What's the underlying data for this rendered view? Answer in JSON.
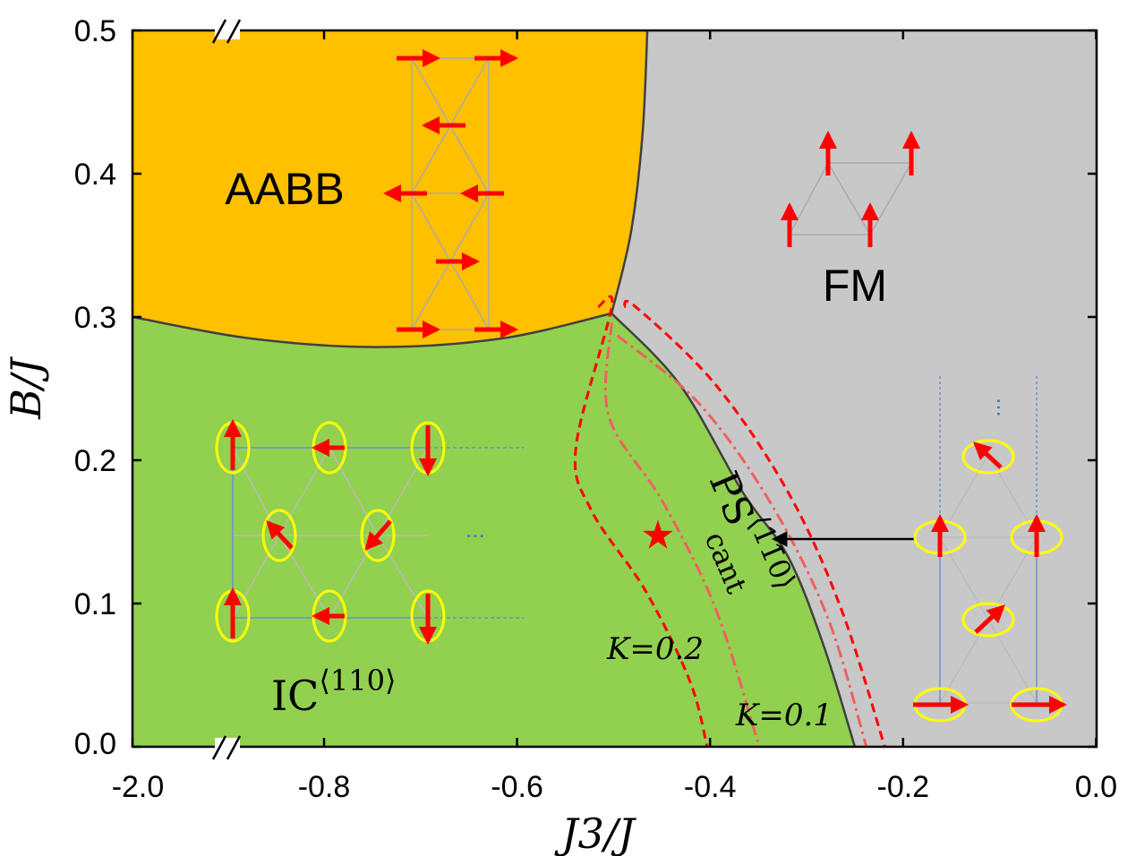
{
  "chart_data": {
    "type": "phase-diagram",
    "xlabel": "J3/J",
    "ylabel": "B/J",
    "xlim": [
      -2.0,
      0.0
    ],
    "ylim": [
      0.0,
      0.5
    ],
    "x_axis_break": "between -2.0 and -0.8",
    "xticks": [
      "-2.0",
      "-0.8",
      "-0.6",
      "-0.4",
      "-0.2",
      "0.0"
    ],
    "xtick_values": [
      -2.0,
      -0.8,
      -0.6,
      -0.4,
      -0.2,
      0.0
    ],
    "yticks": [
      "0.0",
      "0.1",
      "0.2",
      "0.3",
      "0.4",
      "0.5"
    ],
    "ytick_values": [
      0.0,
      0.1,
      0.2,
      0.3,
      0.4,
      0.5
    ],
    "phases": [
      {
        "name": "AABB",
        "color": "#FFC000"
      },
      {
        "name": "FM",
        "color": "#C8C8C8"
      },
      {
        "name": "IC",
        "superscript": "⟨110⟩",
        "color": "#92D050"
      },
      {
        "name": "PS",
        "subscript": "cant",
        "superscript": "⟨11̄0⟩"
      }
    ],
    "boundaries": {
      "aabb_ic": [
        [
          -2.0,
          0.3
        ],
        [
          -1.26,
          0.285
        ],
        [
          -0.746,
          0.279
        ],
        [
          -0.616,
          0.285
        ],
        [
          -0.502,
          0.3025
        ]
      ],
      "aabb_fm": [
        [
          -0.465,
          0.5
        ],
        [
          -0.47,
          0.4275
        ],
        [
          -0.482,
          0.359
        ],
        [
          -0.502,
          0.3025
        ]
      ],
      "ic_fm": [
        [
          -0.502,
          0.3025
        ],
        [
          -0.431,
          0.2525
        ],
        [
          -0.366,
          0.1775
        ],
        [
          -0.319,
          0.1325
        ],
        [
          -0.282,
          0.07
        ],
        [
          -0.25,
          0.0
        ]
      ]
    },
    "series": [
      {
        "name": "K=0.2 (left)",
        "style": "dashed",
        "color": "#FF0000",
        "points": [
          [
            -0.516,
            0.307
          ],
          [
            -0.502,
            0.307
          ],
          [
            -0.539,
            0.209
          ],
          [
            -0.523,
            0.165
          ],
          [
            -0.467,
            0.109
          ],
          [
            -0.421,
            0.046
          ],
          [
            -0.403,
            0.0
          ]
        ]
      },
      {
        "name": "K=0.1 (left)",
        "style": "dashdot",
        "color": "#F06060",
        "points": [
          [
            -0.502,
            0.296
          ],
          [
            -0.505,
            0.231
          ],
          [
            -0.449,
            0.171
          ],
          [
            -0.394,
            0.096
          ],
          [
            -0.349,
            0.0
          ]
        ]
      },
      {
        "name": "K=0.1 (right)",
        "style": "dashdot",
        "color": "#F06060",
        "points": [
          [
            -0.496,
            0.287
          ],
          [
            -0.412,
            0.24
          ],
          [
            -0.338,
            0.171
          ],
          [
            -0.278,
            0.09
          ],
          [
            -0.238,
            0.0
          ]
        ]
      },
      {
        "name": "K=0.2 (right)",
        "style": "dashed",
        "color": "#FF0000",
        "points": [
          [
            -0.489,
            0.307
          ],
          [
            -0.477,
            0.307
          ],
          [
            -0.394,
            0.2525
          ],
          [
            -0.319,
            0.1775
          ],
          [
            -0.264,
            0.096
          ],
          [
            -0.219,
            0.0
          ]
        ]
      }
    ],
    "annotations": {
      "k02": "K=0.2",
      "k01": "K=0.1",
      "star": [
        -0.454,
        0.1475
      ],
      "arrow": {
        "from": [
          -0.189,
          0.145
        ],
        "to": [
          -0.333,
          0.145
        ]
      },
      "dots": "..."
    }
  }
}
